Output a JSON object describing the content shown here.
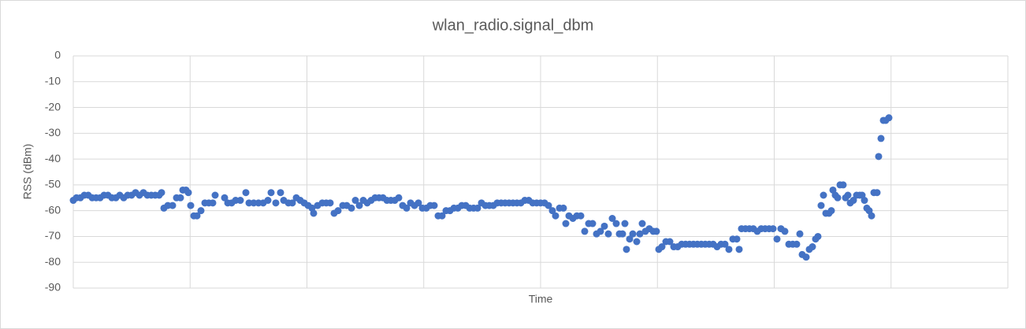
{
  "chart_data": {
    "type": "scatter",
    "title": "wlan_radio.signal_dbm",
    "x_label": "Time",
    "y_label": "RSS (dBm)",
    "color": "#4472c4",
    "grid": true,
    "ylim": [
      -90,
      0
    ],
    "yticks": [
      0,
      -10,
      -20,
      -30,
      -40,
      -50,
      -60,
      -70,
      -80,
      -90
    ],
    "xlim": [
      0,
      1186
    ],
    "x": [
      0,
      4,
      9,
      14,
      19,
      24,
      29,
      34,
      39,
      44,
      49,
      54,
      59,
      64,
      69,
      74,
      79,
      84,
      89,
      94,
      99,
      104,
      109,
      112,
      115,
      120,
      126,
      131,
      136,
      139,
      143,
      146,
      149,
      153,
      157,
      162,
      167,
      172,
      177,
      180,
      192,
      196,
      201,
      206,
      212,
      219,
      223,
      229,
      235,
      241,
      247,
      251,
      257,
      263,
      267,
      273,
      278,
      283,
      288,
      293,
      298,
      303,
      305,
      310,
      316,
      321,
      326,
      331,
      336,
      342,
      347,
      353,
      358,
      363,
      368,
      373,
      378,
      383,
      388,
      393,
      398,
      403,
      408,
      413,
      418,
      423,
      428,
      433,
      438,
      443,
      448,
      453,
      458,
      463,
      468,
      473,
      478,
      483,
      488,
      493,
      498,
      503,
      508,
      513,
      518,
      523,
      528,
      533,
      538,
      543,
      548,
      553,
      558,
      563,
      568,
      573,
      578,
      583,
      588,
      593,
      598,
      603,
      608,
      612,
      617,
      622,
      625,
      629,
      634,
      639,
      644,
      649,
      654,
      659,
      664,
      669,
      674,
      679,
      684,
      689,
      693,
      697,
      700,
      702,
      706,
      710,
      715,
      719,
      722,
      726,
      731,
      736,
      740,
      743,
      747,
      752,
      757,
      762,
      767,
      772,
      777,
      782,
      787,
      792,
      797,
      802,
      807,
      812,
      817,
      822,
      827,
      832,
      837,
      842,
      845,
      848,
      853,
      858,
      863,
      868,
      873,
      878,
      883,
      888,
      893,
      898,
      903,
      908,
      913,
      918,
      922,
      925,
      930,
      934,
      938,
      942,
      945,
      949,
      952,
      955,
      959,
      962,
      964,
      967,
      970,
      973,
      977,
      980,
      983,
      986,
      990,
      994,
      998,
      1001,
      1004,
      1007,
      1010,
      1013,
      1016,
      1020,
      1022,
      1025,
      1028,
      1031,
      1035
    ],
    "values": [
      -56,
      -55,
      -55,
      -54,
      -54,
      -55,
      -55,
      -55,
      -54,
      -54,
      -55,
      -55,
      -54,
      -55,
      -54,
      -54,
      -53,
      -54,
      -53,
      -54,
      -54,
      -54,
      -54,
      -53,
      -59,
      -58,
      -58,
      -55,
      -55,
      -52,
      -52,
      -53,
      -58,
      -62,
      -62,
      -60,
      -57,
      -57,
      -57,
      -54,
      -55,
      -57,
      -57,
      -56,
      -56,
      -53,
      -57,
      -57,
      -57,
      -57,
      -56,
      -53,
      -57,
      -53,
      -56,
      -57,
      -57,
      -55,
      -56,
      -57,
      -58,
      -59,
      -61,
      -58,
      -57,
      -57,
      -57,
      -61,
      -60,
      -58,
      -58,
      -59,
      -56,
      -58,
      -56,
      -57,
      -56,
      -55,
      -55,
      -55,
      -56,
      -56,
      -56,
      -55,
      -58,
      -59,
      -57,
      -58,
      -57,
      -59,
      -59,
      -58,
      -58,
      -62,
      -62,
      -60,
      -60,
      -59,
      -59,
      -58,
      -58,
      -59,
      -59,
      -59,
      -57,
      -58,
      -58,
      -58,
      -57,
      -57,
      -57,
      -57,
      -57,
      -57,
      -57,
      -56,
      -56,
      -57,
      -57,
      -57,
      -57,
      -58,
      -60,
      -62,
      -59,
      -59,
      -65,
      -62,
      -63,
      -62,
      -62,
      -68,
      -65,
      -65,
      -69,
      -68,
      -66,
      -69,
      -63,
      -65,
      -69,
      -69,
      -65,
      -75,
      -71,
      -69,
      -72,
      -69,
      -65,
      -68,
      -67,
      -68,
      -68,
      -75,
      -74,
      -72,
      -72,
      -74,
      -74,
      -73,
      -73,
      -73,
      -73,
      -73,
      -73,
      -73,
      -73,
      -73,
      -74,
      -73,
      -73,
      -75,
      -71,
      -71,
      -75,
      -67,
      -67,
      -67,
      -67,
      -68,
      -67,
      -67,
      -67,
      -67,
      -71,
      -67,
      -68,
      -73,
      -73,
      -73,
      -69,
      -77,
      -78,
      -75,
      -74,
      -71,
      -70,
      -58,
      -54,
      -61,
      -61,
      -60,
      -52,
      -54,
      -55,
      -50,
      -50,
      -55,
      -54,
      -57,
      -56,
      -54,
      -54,
      -54,
      -56,
      -59,
      -60,
      -62,
      -53,
      -53,
      -39,
      -32,
      -25,
      -25,
      -24
    ]
  }
}
